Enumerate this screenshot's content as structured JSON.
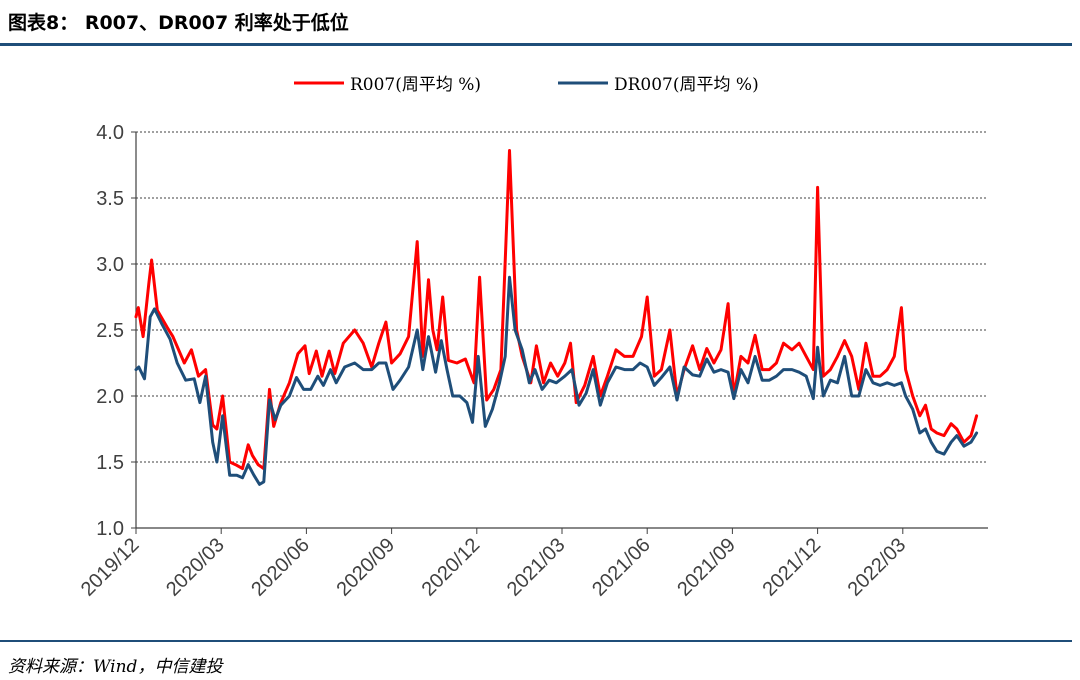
{
  "figure": {
    "title": "图表8： R007、DR007 利率处于低位",
    "source": "资料来源：Wind，中信建投"
  },
  "chart_data": {
    "type": "line",
    "title": "",
    "xlabel": "",
    "ylabel": "",
    "ylim": [
      1.0,
      4.0
    ],
    "yticks": [
      "1.0",
      "1.5",
      "2.0",
      "2.5",
      "3.0",
      "3.5",
      "4.0"
    ],
    "xrange": [
      0,
      30
    ],
    "xticks": [
      {
        "x": 0,
        "label": "2019/12"
      },
      {
        "x": 3,
        "label": "2020/03"
      },
      {
        "x": 6,
        "label": "2020/06"
      },
      {
        "x": 9,
        "label": "2020/09"
      },
      {
        "x": 12,
        "label": "2020/12"
      },
      {
        "x": 15,
        "label": "2021/03"
      },
      {
        "x": 18,
        "label": "2021/06"
      },
      {
        "x": 21,
        "label": "2021/09"
      },
      {
        "x": 24,
        "label": "2021/12"
      },
      {
        "x": 27,
        "label": "2022/03"
      }
    ],
    "grid": true,
    "legend_position": "top",
    "colors": {
      "R007": "#ff0000",
      "DR007": "#1f4e79",
      "axis": "#404040",
      "grid": "#404040"
    },
    "series": [
      {
        "name": "R007(周平均 %)",
        "color": "#ff0000",
        "points": [
          [
            0.0,
            2.6
          ],
          [
            0.08,
            2.67
          ],
          [
            0.25,
            2.45
          ],
          [
            0.45,
            2.85
          ],
          [
            0.55,
            3.03
          ],
          [
            0.75,
            2.65
          ],
          [
            1.1,
            2.52
          ],
          [
            1.3,
            2.45
          ],
          [
            1.7,
            2.25
          ],
          [
            1.95,
            2.35
          ],
          [
            2.2,
            2.15
          ],
          [
            2.45,
            2.2
          ],
          [
            2.7,
            1.78
          ],
          [
            2.85,
            1.75
          ],
          [
            3.05,
            2.0
          ],
          [
            3.3,
            1.5
          ],
          [
            3.5,
            1.48
          ],
          [
            3.75,
            1.45
          ],
          [
            3.95,
            1.63
          ],
          [
            4.1,
            1.55
          ],
          [
            4.3,
            1.48
          ],
          [
            4.5,
            1.45
          ],
          [
            4.7,
            2.05
          ],
          [
            4.85,
            1.77
          ],
          [
            5.1,
            1.95
          ],
          [
            5.4,
            2.1
          ],
          [
            5.7,
            2.32
          ],
          [
            5.95,
            2.38
          ],
          [
            6.1,
            2.17
          ],
          [
            6.35,
            2.34
          ],
          [
            6.55,
            2.15
          ],
          [
            6.8,
            2.34
          ],
          [
            7.0,
            2.17
          ],
          [
            7.3,
            2.4
          ],
          [
            7.7,
            2.5
          ],
          [
            8.0,
            2.4
          ],
          [
            8.3,
            2.22
          ],
          [
            8.55,
            2.4
          ],
          [
            8.8,
            2.56
          ],
          [
            9.0,
            2.25
          ],
          [
            9.3,
            2.32
          ],
          [
            9.6,
            2.45
          ],
          [
            9.9,
            3.17
          ],
          [
            10.1,
            2.3
          ],
          [
            10.3,
            2.88
          ],
          [
            10.45,
            2.5
          ],
          [
            10.6,
            2.35
          ],
          [
            10.8,
            2.75
          ],
          [
            11.0,
            2.27
          ],
          [
            11.3,
            2.25
          ],
          [
            11.6,
            2.28
          ],
          [
            11.9,
            2.1
          ],
          [
            12.1,
            2.9
          ],
          [
            12.35,
            1.97
          ],
          [
            12.6,
            2.05
          ],
          [
            12.85,
            2.2
          ],
          [
            13.0,
            3.02
          ],
          [
            13.15,
            3.86
          ],
          [
            13.4,
            2.5
          ],
          [
            13.6,
            2.3
          ],
          [
            13.9,
            2.1
          ],
          [
            14.1,
            2.38
          ],
          [
            14.35,
            2.1
          ],
          [
            14.6,
            2.25
          ],
          [
            14.85,
            2.15
          ],
          [
            15.1,
            2.25
          ],
          [
            15.3,
            2.4
          ],
          [
            15.5,
            1.95
          ],
          [
            15.8,
            2.08
          ],
          [
            16.1,
            2.3
          ],
          [
            16.35,
            2.0
          ],
          [
            16.6,
            2.15
          ],
          [
            16.9,
            2.35
          ],
          [
            17.2,
            2.3
          ],
          [
            17.5,
            2.3
          ],
          [
            17.8,
            2.45
          ],
          [
            18.0,
            2.75
          ],
          [
            18.25,
            2.15
          ],
          [
            18.5,
            2.2
          ],
          [
            18.8,
            2.5
          ],
          [
            19.05,
            2.0
          ],
          [
            19.3,
            2.2
          ],
          [
            19.6,
            2.38
          ],
          [
            19.85,
            2.2
          ],
          [
            20.1,
            2.36
          ],
          [
            20.35,
            2.25
          ],
          [
            20.6,
            2.35
          ],
          [
            20.85,
            2.7
          ],
          [
            21.05,
            2.0
          ],
          [
            21.3,
            2.3
          ],
          [
            21.55,
            2.25
          ],
          [
            21.8,
            2.46
          ],
          [
            22.05,
            2.2
          ],
          [
            22.3,
            2.2
          ],
          [
            22.55,
            2.25
          ],
          [
            22.8,
            2.4
          ],
          [
            23.1,
            2.35
          ],
          [
            23.35,
            2.4
          ],
          [
            23.6,
            2.3
          ],
          [
            23.85,
            2.2
          ],
          [
            24.0,
            3.58
          ],
          [
            24.2,
            2.15
          ],
          [
            24.45,
            2.2
          ],
          [
            24.7,
            2.3
          ],
          [
            24.95,
            2.42
          ],
          [
            25.2,
            2.3
          ],
          [
            25.45,
            2.05
          ],
          [
            25.7,
            2.4
          ],
          [
            25.95,
            2.15
          ],
          [
            26.2,
            2.15
          ],
          [
            26.45,
            2.2
          ],
          [
            26.7,
            2.3
          ],
          [
            26.95,
            2.67
          ],
          [
            27.1,
            2.2
          ],
          [
            27.35,
            2.0
          ],
          [
            27.6,
            1.85
          ],
          [
            27.8,
            1.93
          ],
          [
            28.0,
            1.75
          ],
          [
            28.2,
            1.72
          ],
          [
            28.45,
            1.7
          ],
          [
            28.7,
            1.79
          ],
          [
            28.9,
            1.75
          ],
          [
            29.15,
            1.65
          ],
          [
            29.4,
            1.7
          ],
          [
            29.6,
            1.85
          ]
        ]
      },
      {
        "name": "DR007(周平均 %)",
        "color": "#1f4e79",
        "points": [
          [
            0.0,
            2.2
          ],
          [
            0.1,
            2.22
          ],
          [
            0.3,
            2.13
          ],
          [
            0.5,
            2.6
          ],
          [
            0.65,
            2.66
          ],
          [
            0.9,
            2.55
          ],
          [
            1.2,
            2.43
          ],
          [
            1.45,
            2.25
          ],
          [
            1.75,
            2.12
          ],
          [
            2.05,
            2.13
          ],
          [
            2.25,
            1.95
          ],
          [
            2.45,
            2.15
          ],
          [
            2.7,
            1.65
          ],
          [
            2.85,
            1.5
          ],
          [
            3.05,
            1.85
          ],
          [
            3.3,
            1.4
          ],
          [
            3.55,
            1.4
          ],
          [
            3.75,
            1.38
          ],
          [
            3.95,
            1.48
          ],
          [
            4.15,
            1.4
          ],
          [
            4.35,
            1.33
          ],
          [
            4.5,
            1.35
          ],
          [
            4.7,
            1.97
          ],
          [
            4.9,
            1.82
          ],
          [
            5.1,
            1.93
          ],
          [
            5.4,
            2.0
          ],
          [
            5.65,
            2.14
          ],
          [
            5.9,
            2.05
          ],
          [
            6.15,
            2.05
          ],
          [
            6.4,
            2.15
          ],
          [
            6.6,
            2.08
          ],
          [
            6.85,
            2.2
          ],
          [
            7.05,
            2.1
          ],
          [
            7.35,
            2.22
          ],
          [
            7.7,
            2.25
          ],
          [
            8.0,
            2.2
          ],
          [
            8.3,
            2.2
          ],
          [
            8.55,
            2.25
          ],
          [
            8.8,
            2.25
          ],
          [
            9.05,
            2.05
          ],
          [
            9.3,
            2.12
          ],
          [
            9.6,
            2.22
          ],
          [
            9.9,
            2.5
          ],
          [
            10.1,
            2.2
          ],
          [
            10.3,
            2.45
          ],
          [
            10.55,
            2.18
          ],
          [
            10.75,
            2.42
          ],
          [
            10.95,
            2.2
          ],
          [
            11.15,
            2.0
          ],
          [
            11.4,
            2.0
          ],
          [
            11.65,
            1.95
          ],
          [
            11.85,
            1.8
          ],
          [
            12.05,
            2.3
          ],
          [
            12.3,
            1.77
          ],
          [
            12.55,
            1.9
          ],
          [
            12.8,
            2.1
          ],
          [
            13.0,
            2.3
          ],
          [
            13.15,
            2.9
          ],
          [
            13.35,
            2.5
          ],
          [
            13.6,
            2.35
          ],
          [
            13.85,
            2.1
          ],
          [
            14.05,
            2.2
          ],
          [
            14.3,
            2.05
          ],
          [
            14.55,
            2.12
          ],
          [
            14.8,
            2.1
          ],
          [
            15.1,
            2.15
          ],
          [
            15.35,
            2.2
          ],
          [
            15.6,
            1.93
          ],
          [
            15.85,
            2.02
          ],
          [
            16.1,
            2.2
          ],
          [
            16.35,
            1.93
          ],
          [
            16.6,
            2.1
          ],
          [
            16.9,
            2.22
          ],
          [
            17.2,
            2.2
          ],
          [
            17.5,
            2.2
          ],
          [
            17.75,
            2.25
          ],
          [
            18.0,
            2.22
          ],
          [
            18.25,
            2.08
          ],
          [
            18.5,
            2.14
          ],
          [
            18.8,
            2.22
          ],
          [
            19.05,
            1.97
          ],
          [
            19.3,
            2.22
          ],
          [
            19.6,
            2.16
          ],
          [
            19.85,
            2.15
          ],
          [
            20.1,
            2.28
          ],
          [
            20.35,
            2.18
          ],
          [
            20.6,
            2.2
          ],
          [
            20.85,
            2.18
          ],
          [
            21.05,
            1.98
          ],
          [
            21.3,
            2.2
          ],
          [
            21.55,
            2.1
          ],
          [
            21.8,
            2.3
          ],
          [
            22.05,
            2.12
          ],
          [
            22.3,
            2.12
          ],
          [
            22.55,
            2.15
          ],
          [
            22.8,
            2.2
          ],
          [
            23.1,
            2.2
          ],
          [
            23.35,
            2.18
          ],
          [
            23.6,
            2.15
          ],
          [
            23.85,
            1.98
          ],
          [
            24.0,
            2.37
          ],
          [
            24.2,
            2.0
          ],
          [
            24.45,
            2.12
          ],
          [
            24.7,
            2.1
          ],
          [
            24.95,
            2.3
          ],
          [
            25.2,
            2.0
          ],
          [
            25.45,
            2.0
          ],
          [
            25.7,
            2.2
          ],
          [
            25.95,
            2.1
          ],
          [
            26.2,
            2.08
          ],
          [
            26.45,
            2.1
          ],
          [
            26.7,
            2.08
          ],
          [
            26.95,
            2.1
          ],
          [
            27.1,
            2.0
          ],
          [
            27.35,
            1.9
          ],
          [
            27.6,
            1.72
          ],
          [
            27.8,
            1.75
          ],
          [
            28.0,
            1.65
          ],
          [
            28.2,
            1.58
          ],
          [
            28.45,
            1.56
          ],
          [
            28.7,
            1.65
          ],
          [
            28.9,
            1.7
          ],
          [
            29.15,
            1.62
          ],
          [
            29.4,
            1.65
          ],
          [
            29.6,
            1.72
          ]
        ]
      }
    ]
  }
}
